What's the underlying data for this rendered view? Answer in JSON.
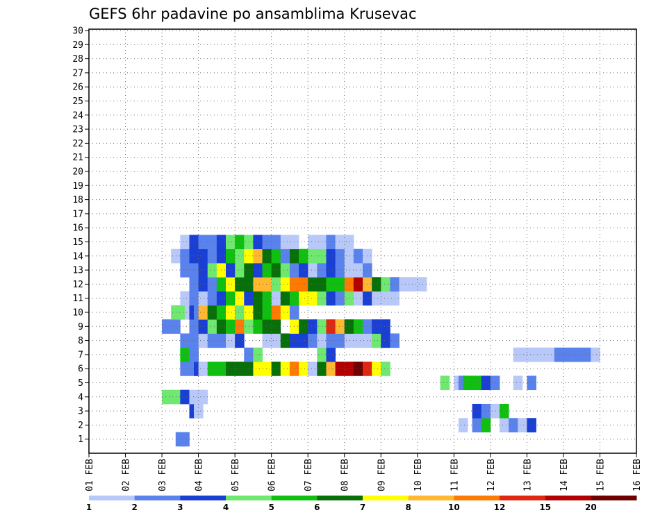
{
  "chart_data": {
    "type": "heatmap",
    "title": "GEFS 6hr padavine po ansamblima Krusevac",
    "xlabel": "",
    "ylabel": "",
    "x_tick_labels": [
      "01 FEB",
      "02 FEB",
      "03 FEB",
      "04 FEB",
      "05 FEB",
      "06 FEB",
      "07 FEB",
      "08 FEB",
      "09 FEB",
      "10 FEB",
      "11 FEB",
      "12 FEB",
      "13 FEB",
      "14 FEB",
      "15 FEB",
      "16 FEB"
    ],
    "y_tick_labels": [
      "1",
      "2",
      "3",
      "4",
      "5",
      "6",
      "7",
      "8",
      "9",
      "10",
      "11",
      "12",
      "13",
      "14",
      "15",
      "16",
      "17",
      "18",
      "19",
      "20",
      "21",
      "22",
      "23",
      "24",
      "25",
      "26",
      "27",
      "28",
      "29",
      "30"
    ],
    "time_steps_per_day": 4,
    "grid": true,
    "legend_position": "bottom",
    "legend": {
      "colors": [
        "#b8c8f8",
        "#5a82ec",
        "#1a3fd4",
        "#6ee86e",
        "#10c010",
        "#087008",
        "#ffff00",
        "#ffb830",
        "#ff7a00",
        "#e02810",
        "#b40000",
        "#6e0000"
      ],
      "labels": [
        "1",
        "2",
        "3",
        "4",
        "5",
        "6",
        "7",
        "8",
        "10",
        "12",
        "15",
        "20"
      ]
    },
    "cells": [
      [
        1,
        9.5,
        2
      ],
      [
        1,
        10,
        2
      ],
      [
        2,
        40.5,
        1
      ],
      [
        2,
        42,
        2
      ],
      [
        2,
        43,
        5
      ],
      [
        2,
        45,
        1
      ],
      [
        2,
        46,
        2
      ],
      [
        2,
        47,
        1
      ],
      [
        2,
        48,
        3
      ],
      [
        3,
        11,
        3
      ],
      [
        3,
        11.5,
        1
      ],
      [
        3,
        42,
        3
      ],
      [
        3,
        43,
        2
      ],
      [
        3,
        44,
        1
      ],
      [
        3,
        45,
        5
      ],
      [
        4,
        8,
        4
      ],
      [
        4,
        9,
        4
      ],
      [
        4,
        10,
        3
      ],
      [
        4,
        11,
        1
      ],
      [
        4,
        12,
        1
      ],
      [
        5,
        38.5,
        4
      ],
      [
        5,
        40,
        1
      ],
      [
        5,
        40.5,
        2
      ],
      [
        5,
        41,
        5
      ],
      [
        5,
        42,
        5
      ],
      [
        5,
        43,
        3
      ],
      [
        5,
        44,
        2
      ],
      [
        5,
        46.5,
        1
      ],
      [
        5,
        48,
        2
      ],
      [
        6,
        10,
        2
      ],
      [
        6,
        11,
        2
      ],
      [
        6,
        11.5,
        3
      ],
      [
        6,
        12,
        1
      ],
      [
        6,
        13,
        5
      ],
      [
        6,
        14,
        5
      ],
      [
        6,
        15,
        6
      ],
      [
        6,
        16,
        6
      ],
      [
        6,
        17,
        6
      ],
      [
        6,
        18,
        7
      ],
      [
        6,
        19,
        7
      ],
      [
        6,
        20,
        6
      ],
      [
        6,
        21,
        7
      ],
      [
        6,
        22,
        9
      ],
      [
        6,
        23,
        7
      ],
      [
        6,
        24,
        1
      ],
      [
        6,
        25,
        6
      ],
      [
        6,
        26,
        8
      ],
      [
        6,
        27,
        11
      ],
      [
        6,
        28,
        11
      ],
      [
        6,
        29,
        12
      ],
      [
        6,
        30,
        10
      ],
      [
        6,
        31,
        7
      ],
      [
        6,
        32,
        4
      ],
      [
        7,
        10,
        5
      ],
      [
        7,
        11,
        2
      ],
      [
        7,
        17,
        2
      ],
      [
        7,
        18,
        4
      ],
      [
        7,
        25,
        4
      ],
      [
        7,
        26,
        3
      ],
      [
        7,
        46.5,
        1
      ],
      [
        7,
        47,
        1
      ],
      [
        7,
        48,
        1
      ],
      [
        7,
        49,
        1
      ],
      [
        7,
        50,
        1
      ],
      [
        7,
        51,
        2
      ],
      [
        7,
        52,
        2
      ],
      [
        7,
        53,
        2
      ],
      [
        7,
        54,
        2
      ],
      [
        7,
        55,
        1
      ],
      [
        8,
        10,
        2
      ],
      [
        8,
        11,
        2
      ],
      [
        8,
        12,
        1
      ],
      [
        8,
        13,
        2
      ],
      [
        8,
        14,
        2
      ],
      [
        8,
        15,
        1
      ],
      [
        8,
        16,
        3
      ],
      [
        8,
        19,
        1
      ],
      [
        8,
        20,
        1
      ],
      [
        8,
        21,
        6
      ],
      [
        8,
        22,
        3
      ],
      [
        8,
        23,
        3
      ],
      [
        8,
        24,
        2
      ],
      [
        8,
        25,
        1
      ],
      [
        8,
        26,
        2
      ],
      [
        8,
        27,
        2
      ],
      [
        8,
        28,
        1
      ],
      [
        8,
        29,
        1
      ],
      [
        8,
        30,
        1
      ],
      [
        8,
        31,
        4
      ],
      [
        8,
        32,
        3
      ],
      [
        8,
        33,
        2
      ],
      [
        9,
        8,
        2
      ],
      [
        9,
        9,
        2
      ],
      [
        9,
        11,
        2
      ],
      [
        9,
        12,
        3
      ],
      [
        9,
        13,
        4
      ],
      [
        9,
        14,
        6
      ],
      [
        9,
        15,
        5
      ],
      [
        9,
        16,
        9
      ],
      [
        9,
        17,
        4
      ],
      [
        9,
        18,
        5
      ],
      [
        9,
        19,
        6
      ],
      [
        9,
        20,
        6
      ],
      [
        9,
        22,
        7
      ],
      [
        9,
        23,
        6
      ],
      [
        9,
        24,
        3
      ],
      [
        9,
        25,
        4
      ],
      [
        9,
        26,
        10
      ],
      [
        9,
        27,
        8
      ],
      [
        9,
        28,
        6
      ],
      [
        9,
        29,
        5
      ],
      [
        9,
        30,
        2
      ],
      [
        9,
        31,
        3
      ],
      [
        9,
        32,
        3
      ],
      [
        10,
        9,
        4
      ],
      [
        10,
        9.5,
        4
      ],
      [
        10,
        10.5,
        1
      ],
      [
        10,
        11,
        3
      ],
      [
        10,
        11.5,
        2
      ],
      [
        10,
        12,
        8
      ],
      [
        10,
        13,
        6
      ],
      [
        10,
        14,
        5
      ],
      [
        10,
        15,
        7
      ],
      [
        10,
        16,
        4
      ],
      [
        10,
        17,
        7
      ],
      [
        10,
        18,
        6
      ],
      [
        10,
        19,
        5
      ],
      [
        10,
        20,
        9
      ],
      [
        10,
        21,
        7
      ],
      [
        10,
        22,
        2
      ],
      [
        11,
        10,
        1
      ],
      [
        11,
        11,
        2
      ],
      [
        11,
        12,
        1
      ],
      [
        11,
        13,
        2
      ],
      [
        11,
        14,
        3
      ],
      [
        11,
        15,
        5
      ],
      [
        11,
        16,
        7
      ],
      [
        11,
        17,
        3
      ],
      [
        11,
        18,
        6
      ],
      [
        11,
        19,
        5
      ],
      [
        11,
        20,
        1
      ],
      [
        11,
        21,
        6
      ],
      [
        11,
        22,
        5
      ],
      [
        11,
        23,
        7
      ],
      [
        11,
        24,
        7
      ],
      [
        11,
        25,
        4
      ],
      [
        11,
        26,
        3
      ],
      [
        11,
        27,
        2
      ],
      [
        11,
        28,
        4
      ],
      [
        11,
        29,
        1
      ],
      [
        11,
        30,
        3
      ],
      [
        11,
        31,
        1
      ],
      [
        11,
        32,
        1
      ],
      [
        11,
        33,
        1
      ],
      [
        12,
        11,
        2
      ],
      [
        12,
        11.5,
        2
      ],
      [
        12,
        12,
        3
      ],
      [
        12,
        13,
        2
      ],
      [
        12,
        14,
        5
      ],
      [
        12,
        15,
        7
      ],
      [
        12,
        16,
        6
      ],
      [
        12,
        17,
        6
      ],
      [
        12,
        18,
        8
      ],
      [
        12,
        19,
        8
      ],
      [
        12,
        20,
        4
      ],
      [
        12,
        21,
        7
      ],
      [
        12,
        22,
        9
      ],
      [
        12,
        23,
        9
      ],
      [
        12,
        24,
        6
      ],
      [
        12,
        25,
        6
      ],
      [
        12,
        26,
        5
      ],
      [
        12,
        27,
        5
      ],
      [
        12,
        28,
        9
      ],
      [
        12,
        29,
        11
      ],
      [
        12,
        30,
        8
      ],
      [
        12,
        31,
        6
      ],
      [
        12,
        32,
        4
      ],
      [
        12,
        33,
        2
      ],
      [
        12,
        34,
        1
      ],
      [
        12,
        35,
        1
      ],
      [
        12,
        36,
        1
      ],
      [
        13,
        10,
        2
      ],
      [
        13,
        11,
        2
      ],
      [
        13,
        12,
        3
      ],
      [
        13,
        13,
        4
      ],
      [
        13,
        14,
        7
      ],
      [
        13,
        15,
        3
      ],
      [
        13,
        16,
        4
      ],
      [
        13,
        17,
        6
      ],
      [
        13,
        18,
        3
      ],
      [
        13,
        19,
        5
      ],
      [
        13,
        20,
        6
      ],
      [
        13,
        21,
        4
      ],
      [
        13,
        22,
        2
      ],
      [
        13,
        23,
        3
      ],
      [
        13,
        24,
        1
      ],
      [
        13,
        25,
        2
      ],
      [
        13,
        26,
        3
      ],
      [
        13,
        27,
        2
      ],
      [
        13,
        28,
        1
      ],
      [
        13,
        29,
        1
      ],
      [
        13,
        30,
        2
      ],
      [
        14,
        9,
        1
      ],
      [
        14,
        10,
        2
      ],
      [
        14,
        11,
        3
      ],
      [
        14,
        12,
        3
      ],
      [
        14,
        13,
        2
      ],
      [
        14,
        14,
        3
      ],
      [
        14,
        15,
        5
      ],
      [
        14,
        16,
        4
      ],
      [
        14,
        17,
        7
      ],
      [
        14,
        18,
        8
      ],
      [
        14,
        19,
        6
      ],
      [
        14,
        20,
        5
      ],
      [
        14,
        21,
        2
      ],
      [
        14,
        22,
        6
      ],
      [
        14,
        23,
        5
      ],
      [
        14,
        24,
        4
      ],
      [
        14,
        25,
        4
      ],
      [
        14,
        26,
        3
      ],
      [
        14,
        27,
        2
      ],
      [
        14,
        28,
        1
      ],
      [
        14,
        29,
        2
      ],
      [
        14,
        30,
        1
      ],
      [
        15,
        10,
        1
      ],
      [
        15,
        11,
        3
      ],
      [
        15,
        12,
        2
      ],
      [
        15,
        13,
        2
      ],
      [
        15,
        14,
        3
      ],
      [
        15,
        15,
        4
      ],
      [
        15,
        16,
        5
      ],
      [
        15,
        17,
        4
      ],
      [
        15,
        18,
        3
      ],
      [
        15,
        19,
        2
      ],
      [
        15,
        20,
        2
      ],
      [
        15,
        21,
        1
      ],
      [
        15,
        22,
        1
      ],
      [
        15,
        24,
        1
      ],
      [
        15,
        25,
        1
      ],
      [
        15,
        26,
        2
      ],
      [
        15,
        27,
        1
      ],
      [
        15,
        28,
        1
      ]
    ]
  }
}
